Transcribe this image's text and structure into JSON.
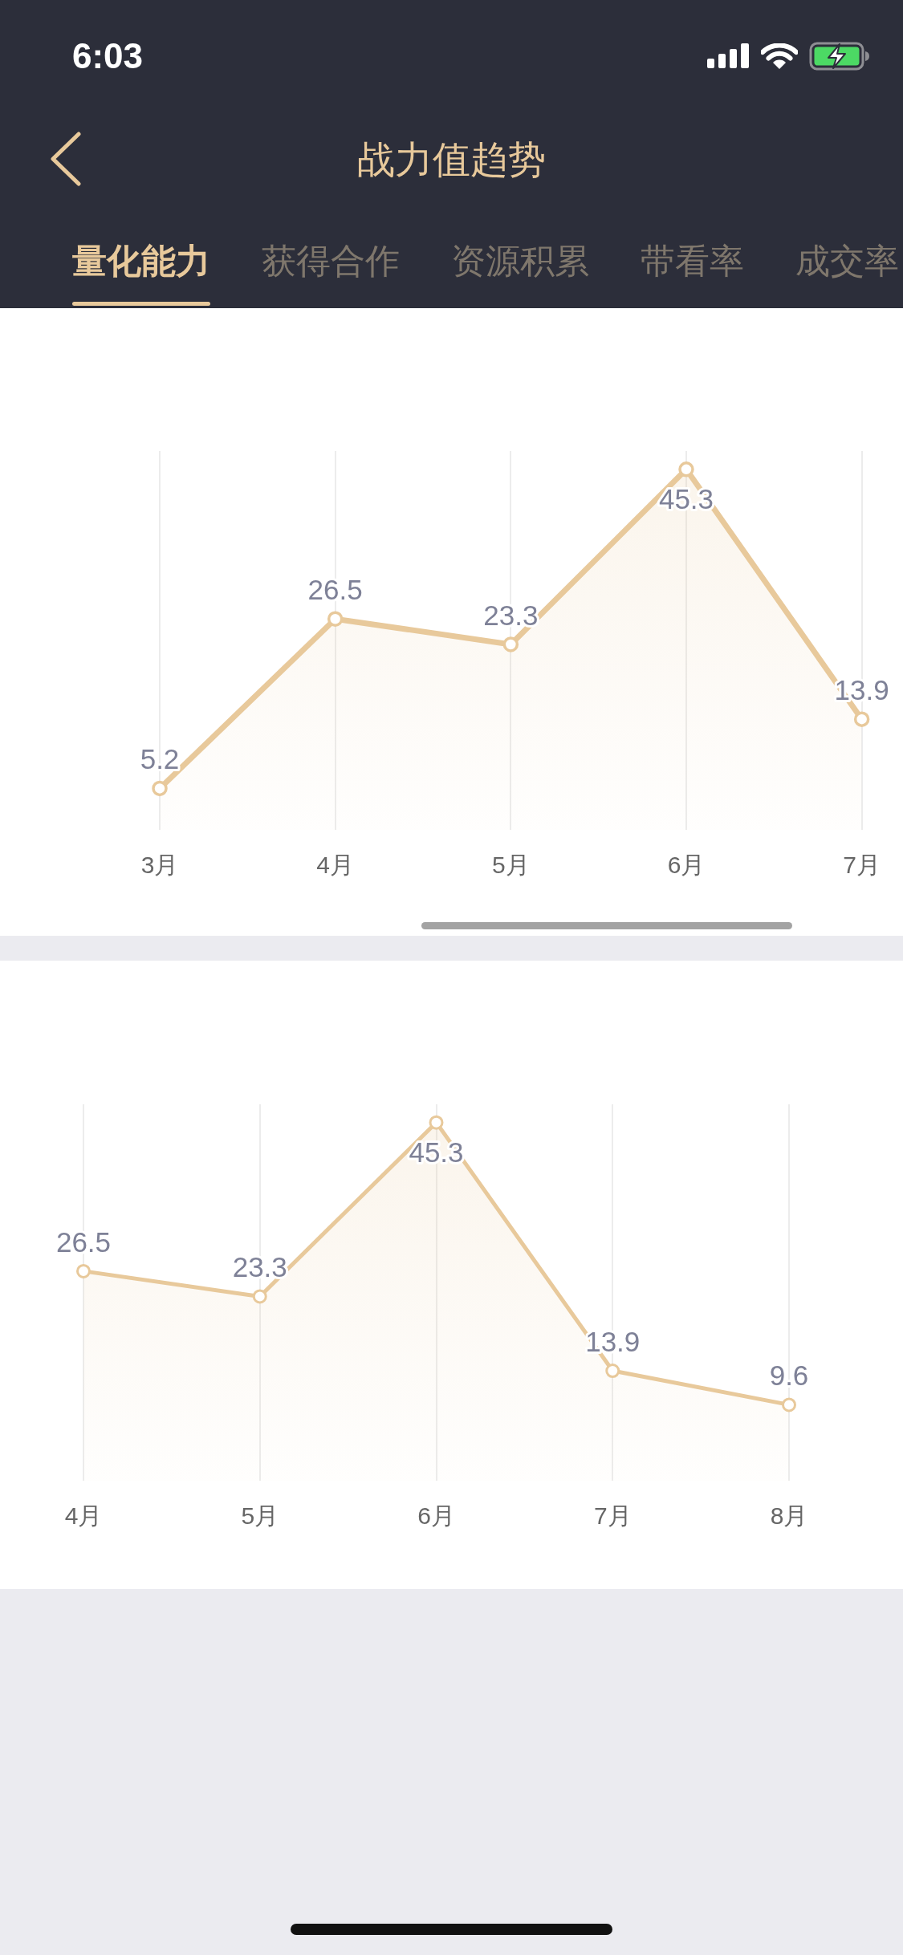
{
  "chart_data": [
    {
      "type": "area",
      "title": "战力值趋势",
      "annotations": [
        "6:03",
        "量化能力",
        "获得合作",
        "资源积累",
        "带看率",
        "成交率"
      ],
      "categories": [
        "3月",
        "4月",
        "5月",
        "6月",
        "7月"
      ],
      "values": [
        5.2,
        26.5,
        23.3,
        45.3,
        13.9
      ],
      "color": "#e8c99b",
      "ylim": [
        0,
        47.6
      ],
      "grid": "x",
      "marker": "circle",
      "data_labels": true
    },
    {
      "type": "area",
      "categories": [
        "4月",
        "5月",
        "6月",
        "7月",
        "8月"
      ],
      "values": [
        26.5,
        23.3,
        45.3,
        13.9,
        9.6
      ],
      "color": "#e8c99b",
      "ylim": [
        0,
        47.6
      ],
      "grid": "x",
      "marker": "circle",
      "data_labels": true
    }
  ]
}
